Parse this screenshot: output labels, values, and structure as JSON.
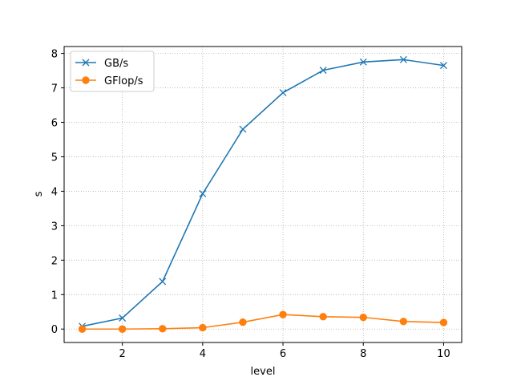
{
  "chart_data": {
    "type": "line",
    "xlabel": "level",
    "ylabel": "s",
    "xlim": [
      0.55,
      10.45
    ],
    "ylim": [
      -0.39,
      8.2
    ],
    "xticks": [
      2,
      4,
      6,
      8,
      10
    ],
    "yticks": [
      0,
      1,
      2,
      3,
      4,
      5,
      6,
      7,
      8
    ],
    "grid": true,
    "legend_position": "top-left",
    "x": [
      1,
      2,
      3,
      4,
      5,
      6,
      7,
      8,
      9,
      10
    ],
    "series": [
      {
        "name": "GB/s",
        "marker": "x",
        "color": "#1f77b4",
        "values": [
          0.08,
          0.32,
          1.38,
          3.93,
          5.8,
          6.86,
          7.51,
          7.75,
          7.82,
          7.65
        ]
      },
      {
        "name": "GFlop/s",
        "marker": "circle",
        "color": "#ff7f0e",
        "values": [
          0.0,
          0.0,
          0.01,
          0.04,
          0.2,
          0.42,
          0.36,
          0.34,
          0.22,
          0.19
        ]
      }
    ]
  }
}
